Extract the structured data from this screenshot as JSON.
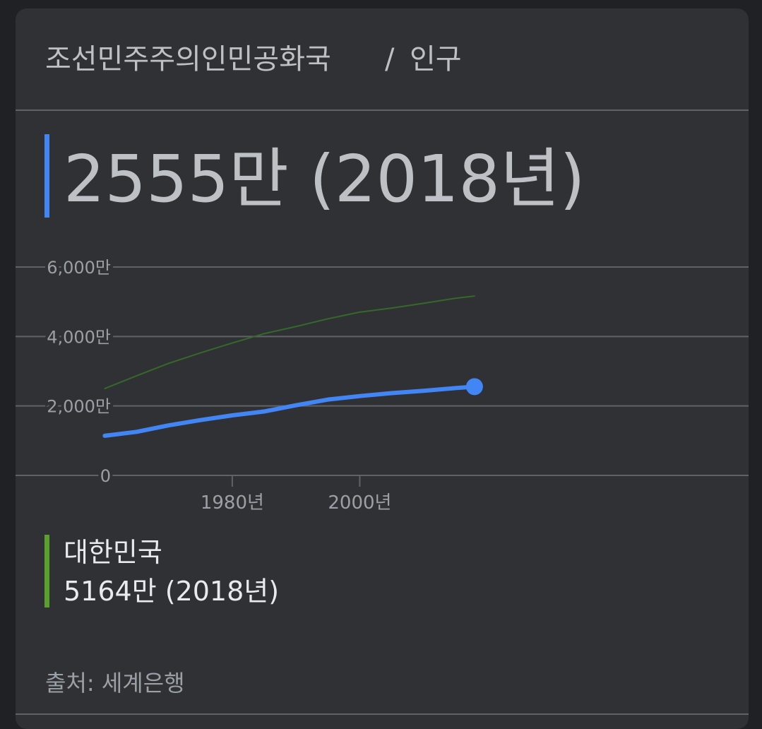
{
  "header": {
    "entity": "조선민주주의인민공화국",
    "separator": "/",
    "metric": "인구"
  },
  "headline": {
    "value": "2555만 (2018년)"
  },
  "chart_data": {
    "type": "line",
    "x": [
      1960,
      1965,
      1970,
      1975,
      1980,
      1985,
      1990,
      1995,
      2000,
      2005,
      2010,
      2015,
      2018
    ],
    "series": [
      {
        "color": "#4285f4",
        "values": [
          1142,
          1255,
          1441,
          1593,
          1729,
          1840,
          2019,
          2183,
          2284,
          2369,
          2435,
          2514,
          2555
        ]
      },
      {
        "name": "대한민국",
        "color": "#35692a",
        "values": [
          2501,
          2870,
          3224,
          3528,
          3812,
          4081,
          4287,
          4509,
          4701,
          4818,
          4955,
          5101,
          5164
        ]
      }
    ],
    "legend_value": "5164만 (2018년)",
    "legend_color": "#5aa02c",
    "ylim": [
      0,
      6000
    ],
    "yticks": [
      0,
      {
        "value": 2000,
        "label": "2,000만"
      },
      {
        "value": 4000,
        "label": "4,000만"
      },
      {
        "value": 6000,
        "label": "6,000만"
      }
    ],
    "xlim": [
      1946,
      2061
    ],
    "xticks": [
      {
        "value": 1980,
        "label": "1980년"
      },
      {
        "value": 2000,
        "label": "2000년"
      }
    ],
    "grid": true
  },
  "source": "출처: 세계은행"
}
